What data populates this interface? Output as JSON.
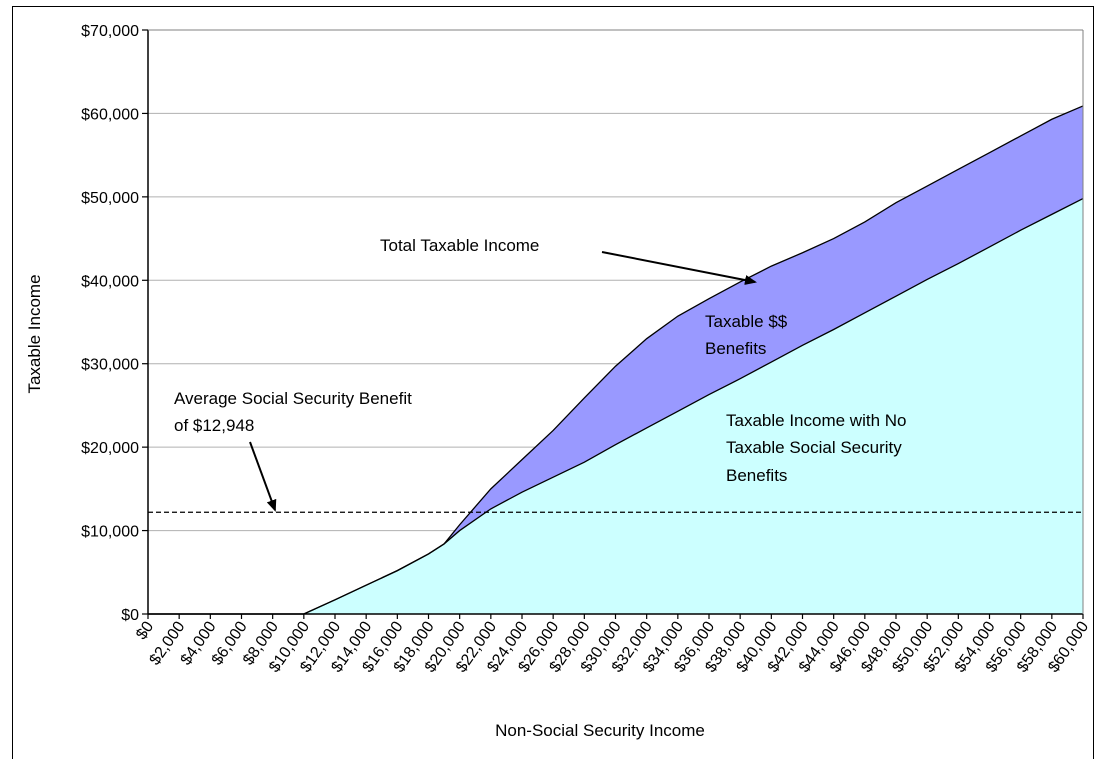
{
  "chart_data": {
    "type": "area",
    "title": "",
    "xlabel": "Non-Social Security Income",
    "ylabel": "Taxable Income",
    "xlim": [
      0,
      60000
    ],
    "ylim": [
      0,
      70000
    ],
    "x_ticks": [
      "$0",
      "$2,000",
      "$4,000",
      "$6,000",
      "$8,000",
      "$10,000",
      "$12,000",
      "$14,000",
      "$16,000",
      "$18,000",
      "$20,000",
      "$22,000",
      "$24,000",
      "$26,000",
      "$28,000",
      "$30,000",
      "$32,000",
      "$34,000",
      "$36,000",
      "$38,000",
      "$40,000",
      "$42,000",
      "$44,000",
      "$46,000",
      "$48,000",
      "$50,000",
      "$52,000",
      "$54,000",
      "$56,000",
      "$58,000",
      "$60,000"
    ],
    "y_ticks": [
      "$0",
      "$10,000",
      "$20,000",
      "$30,000",
      "$40,000",
      "$50,000",
      "$60,000",
      "$70,000"
    ],
    "grid": "horizontal",
    "x": [
      0,
      10000,
      12000,
      14000,
      16000,
      18000,
      19000,
      20000,
      22000,
      24000,
      26000,
      28000,
      30000,
      32000,
      34000,
      36000,
      38000,
      40000,
      42000,
      44000,
      46000,
      48000,
      50000,
      52000,
      54000,
      56000,
      58000,
      60000
    ],
    "series": [
      {
        "name": "Taxable Income with No Taxable Social Security Benefits",
        "color": "#ccffff",
        "values": [
          0,
          0,
          1700,
          3450,
          5200,
          7200,
          8400,
          10000,
          12600,
          14600,
          16400,
          18200,
          20300,
          22300,
          24300,
          26300,
          28200,
          30200,
          32200,
          34100,
          36100,
          38100,
          40100,
          42000,
          44000,
          46000,
          47900,
          49800
        ]
      },
      {
        "name": "Total Taxable Income",
        "color": "#9999ff",
        "values": [
          0,
          0,
          1700,
          3450,
          5200,
          7200,
          8400,
          10700,
          15000,
          18500,
          22000,
          25900,
          29700,
          33000,
          35700,
          37800,
          39800,
          41700,
          43300,
          45000,
          47000,
          49300,
          51300,
          53300,
          55300,
          57300,
          59300,
          60900
        ]
      }
    ],
    "reference_line": {
      "value": 12200,
      "style": "dashed"
    },
    "annotations": {
      "total_taxable": "Total Taxable Income",
      "ss_benefits_line1": "Taxable $$",
      "ss_benefits_line2": "Benefits",
      "no_taxable_line1": "Taxable Income with No",
      "no_taxable_line2": "Taxable Social Security",
      "no_taxable_line3": "Benefits",
      "avg_line1": "Average Social Security Benefit",
      "avg_line2": "of $12,948"
    }
  }
}
